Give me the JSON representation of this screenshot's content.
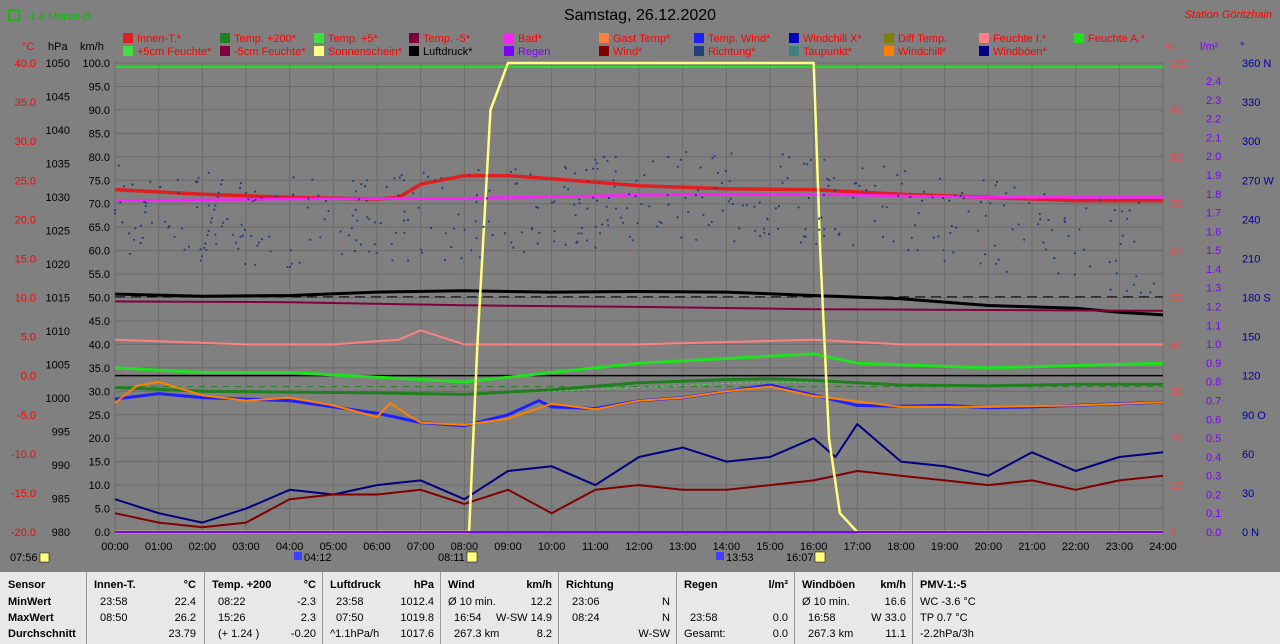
{
  "header": {
    "title": "Samstag, 26.12.2020",
    "station": "Station Göritzhain",
    "trend_label": "-1.4 Monat-Ø"
  },
  "legend_row1": [
    {
      "label": "Innen-T.*",
      "color": "#e02020"
    },
    {
      "label": "Temp. +200*",
      "color": "#208020"
    },
    {
      "label": "Temp. +5*",
      "color": "#40e040"
    },
    {
      "label": "Temp. -5*",
      "color": "#800040"
    },
    {
      "label": "Bad*",
      "color": "#ff20ff"
    },
    {
      "label": "Gast Temp*",
      "color": "#ff8040"
    },
    {
      "label": "Temp. Wind*",
      "color": "#2020ff"
    },
    {
      "label": "Windchill X*",
      "color": "#0000c0"
    },
    {
      "label": "Diff Temp.",
      "color": "#808000"
    },
    {
      "label": "Feuchte I.*",
      "color": "#ff8080"
    },
    {
      "label": "Feuchte A.*",
      "color": "#20e020"
    }
  ],
  "legend_row2": [
    {
      "label": "+5cm Feuchte*",
      "color": "#40e040"
    },
    {
      "label": "-5cm Feuchte*",
      "color": "#800040"
    },
    {
      "label": "Sonnenschein*",
      "color": "#ffff80"
    },
    {
      "label": "Luftdruck*",
      "color": "#000000"
    },
    {
      "label": "Regen",
      "color": "#8000ff"
    },
    {
      "label": "Wind*",
      "color": "#800000"
    },
    {
      "label": "Richtung*",
      "color": "#204080"
    },
    {
      "label": "Taupunkt*",
      "color": "#408080"
    },
    {
      "label": "Windchill*",
      "color": "#ff8000"
    },
    {
      "label": "Windböen*",
      "color": "#000080"
    }
  ],
  "axes": {
    "celsius_unit": "°C",
    "hpa_unit": "hPa",
    "kmh_unit": "km/h",
    "pct_unit": "%",
    "lm2_unit": "l/m²",
    "deg_unit": "°",
    "celsius": [
      "40.0",
      "35.0",
      "30.0",
      "25.0",
      "20.0",
      "15.0",
      "10.0",
      "5.0",
      "0.0",
      "-5.0",
      "-10.0",
      "-15.0",
      "-20.0"
    ],
    "hpa": [
      "1050",
      "1045",
      "1040",
      "1035",
      "1030",
      "1025",
      "1020",
      "1015",
      "1010",
      "1005",
      "1000",
      "995",
      "990",
      "985",
      "980"
    ],
    "kmh": [
      "100.0",
      "95.0",
      "90.0",
      "85.0",
      "80.0",
      "75.0",
      "70.0",
      "65.0",
      "60.0",
      "55.0",
      "50.0",
      "45.0",
      "40.0",
      "35.0",
      "30.0",
      "25.0",
      "20.0",
      "15.0",
      "10.0",
      "5.0",
      "0.0"
    ],
    "pct": [
      "100",
      "90",
      "80",
      "70",
      "60",
      "50",
      "40",
      "30",
      "20",
      "10",
      "0"
    ],
    "lm2": [
      "2.4",
      "2.3",
      "2.2",
      "2.1",
      "2.0",
      "1.9",
      "1.8",
      "1.7",
      "1.6",
      "1.5",
      "1.4",
      "1.3",
      "1.2",
      "1.1",
      "1.0",
      "0.9",
      "0.8",
      "0.7",
      "0.6",
      "0.5",
      "0.4",
      "0.3",
      "0.2",
      "0.1",
      "0.0"
    ],
    "dir": [
      "360 N",
      "330",
      "300",
      "270 W",
      "240",
      "210",
      "180 S",
      "150",
      "120",
      "90 O",
      "60",
      "30",
      "0 N"
    ],
    "hours": [
      "00:00",
      "01:00",
      "02:00",
      "03:00",
      "04:00",
      "05:00",
      "06:00",
      "07:00",
      "08:00",
      "09:00",
      "10:00",
      "11:00",
      "12:00",
      "13:00",
      "14:00",
      "15:00",
      "16:00",
      "17:00",
      "18:00",
      "19:00",
      "20:00",
      "21:00",
      "22:00",
      "23:00",
      "24:00"
    ]
  },
  "sun_marks": {
    "moonset": "07:56",
    "moonrise": "04:12",
    "sunrise": "08:11",
    "noon": "13:53",
    "sunset": "16:07"
  },
  "chart_data": {
    "type": "line",
    "title": "Samstag, 26.12.2020",
    "x_unit": "hour",
    "x_range": [
      0,
      24
    ],
    "grid": true,
    "series": [
      {
        "name": "Innen-T.*",
        "axis": "celsius",
        "color": "#e02020",
        "x": [
          0,
          2,
          4,
          6,
          6.5,
          7,
          8,
          9,
          10,
          12,
          14,
          16,
          18,
          20,
          22,
          24
        ],
        "y": [
          23.8,
          23.2,
          22.8,
          22.6,
          22.8,
          24.5,
          25.6,
          25.6,
          25.2,
          24.3,
          23.9,
          23.8,
          23.2,
          22.8,
          22.4,
          22.4
        ]
      },
      {
        "name": "Feuchte I.*",
        "axis": "pct",
        "color": "#ff8080",
        "x": [
          0,
          3,
          5,
          6.5,
          7,
          8,
          9,
          12,
          16,
          18,
          20,
          24
        ],
        "y": [
          41,
          40,
          40,
          41,
          43,
          40,
          40,
          40,
          41,
          40,
          40,
          40
        ]
      },
      {
        "name": "Luftdruck*",
        "axis": "hpa",
        "color": "#000000",
        "x": [
          0,
          2,
          4,
          6,
          8,
          10,
          12,
          14,
          16,
          18,
          20,
          22,
          23,
          24
        ],
        "y": [
          1015.5,
          1015.2,
          1015.3,
          1015.8,
          1016.0,
          1015.8,
          1015.9,
          1015.8,
          1015.3,
          1014.8,
          1013.8,
          1013.4,
          1012.8,
          1012.4
        ]
      },
      {
        "name": "Bad*",
        "axis": "celsius",
        "color": "#ff20ff",
        "x": [
          0,
          4,
          8,
          10,
          12,
          14,
          16,
          18,
          20,
          24
        ],
        "y": [
          22.4,
          22.6,
          22.7,
          22.9,
          23.1,
          23.2,
          23.2,
          23.0,
          22.8,
          22.8
        ]
      },
      {
        "name": "Temp. -5*",
        "axis": "celsius",
        "color": "#800040",
        "x": [
          0,
          4,
          8,
          12,
          16,
          20,
          24
        ],
        "y": [
          9.5,
          9.4,
          9.0,
          8.8,
          8.5,
          8.4,
          8.3
        ]
      },
      {
        "name": "Feuchte A.*",
        "axis": "pct",
        "color": "#20e020",
        "x": [
          0,
          2,
          4,
          8,
          10,
          12,
          14,
          16,
          17,
          20,
          24
        ],
        "y": [
          35,
          34,
          34,
          32,
          34,
          36,
          37,
          38,
          36,
          35,
          36
        ]
      },
      {
        "name": "Temp. +5*",
        "axis": "celsius",
        "color": "#40e040",
        "x": [
          0,
          2,
          4,
          6,
          8,
          10,
          12,
          14,
          16,
          18,
          20,
          22,
          24
        ],
        "y": [
          -1.5,
          -2.0,
          -2.2,
          -2.3,
          -2.4,
          -2.0,
          -1.5,
          -1.0,
          -0.8,
          -1.2,
          -1.4,
          -1.2,
          -1.1
        ]
      },
      {
        "name": "Temp. +200*",
        "axis": "celsius",
        "color": "#208020",
        "x": [
          0,
          2,
          4,
          6,
          8,
          10,
          12,
          14,
          15,
          16,
          18,
          20,
          22,
          24
        ],
        "y": [
          -1.5,
          -2.0,
          -2.1,
          -2.2,
          -2.4,
          -1.8,
          -0.9,
          -0.5,
          -0.4,
          -0.6,
          -1.2,
          -1.3,
          -1.1,
          -1.1
        ]
      },
      {
        "name": "Temp. Wind*",
        "axis": "celsius",
        "color": "#2020ff",
        "x": [
          0,
          1,
          2,
          3,
          4,
          5,
          6,
          7,
          8,
          9,
          9.7,
          10,
          11,
          12,
          13,
          14,
          15,
          16,
          17,
          18,
          19,
          20,
          21,
          22,
          23,
          24
        ],
        "y": [
          -3.0,
          -2.3,
          -2.8,
          -3.0,
          -3.2,
          -4.0,
          -4.8,
          -6.0,
          -6.4,
          -5.0,
          -3.2,
          -4.0,
          -4.2,
          -3.2,
          -2.8,
          -2.0,
          -1.2,
          -2.5,
          -3.8,
          -3.9,
          -3.8,
          -4.1,
          -4.0,
          -3.8,
          -3.6,
          -3.4
        ]
      },
      {
        "name": "Windchill*",
        "axis": "celsius",
        "color": "#ff8000",
        "x": [
          0,
          0.5,
          1,
          2,
          3,
          4,
          5,
          6,
          6.3,
          6.7,
          7,
          8,
          9,
          10,
          11,
          12,
          13,
          14,
          15,
          16,
          18,
          20,
          22,
          24
        ],
        "y": [
          -3.5,
          -1.3,
          -0.8,
          -2.5,
          -3.2,
          -2.8,
          -3.8,
          -5.3,
          -3.5,
          -5.0,
          -6.0,
          -6.3,
          -5.5,
          -3.6,
          -4.3,
          -3.2,
          -2.8,
          -2.0,
          -1.4,
          -2.6,
          -4.0,
          -4.0,
          -3.8,
          -3.4
        ]
      },
      {
        "name": "Windböen*",
        "axis": "kmh",
        "color": "#000080",
        "x": [
          0,
          1,
          2,
          3,
          4,
          5,
          6,
          7,
          8,
          9,
          10,
          11,
          12,
          13,
          14,
          15,
          16,
          16.5,
          17,
          18,
          19,
          20,
          21,
          22,
          23,
          24
        ],
        "y": [
          7,
          4,
          2,
          5,
          9,
          8,
          10,
          11,
          7,
          13,
          14,
          10,
          16,
          18,
          15,
          16,
          20,
          16,
          23,
          15,
          14,
          12,
          17,
          13,
          16,
          17
        ]
      },
      {
        "name": "Wind*",
        "axis": "kmh",
        "color": "#800000",
        "x": [
          0,
          1,
          2,
          3,
          4,
          5,
          6,
          7,
          8,
          9,
          10,
          11,
          12,
          13,
          14,
          15,
          16,
          17,
          18,
          19,
          20,
          21,
          22,
          23,
          24
        ],
        "y": [
          4,
          2,
          1,
          2,
          7,
          8,
          8,
          9,
          6,
          9,
          4,
          9,
          10,
          9,
          9,
          10,
          11,
          13,
          12,
          11,
          10,
          11,
          9,
          11,
          12
        ]
      },
      {
        "name": "Sonnenschein*",
        "axis": "pct",
        "color": "#ffff80",
        "x": [
          0,
          8.11,
          8.3,
          8.6,
          9,
          9.5,
          16,
          16.15,
          16.35,
          16.6,
          17,
          24
        ],
        "y": [
          0,
          0,
          40,
          90,
          100,
          100,
          100,
          60,
          20,
          4,
          0,
          0
        ]
      },
      {
        "name": "Regen",
        "axis": "lm2",
        "color": "#8000ff",
        "x": [
          0,
          24
        ],
        "y": [
          0,
          0
        ]
      }
    ]
  },
  "stats": {
    "sensor": {
      "title": "Sensor",
      "rows": [
        "MinWert",
        "MaxWert",
        "Durchschnitt"
      ]
    },
    "innen": {
      "title": "Innen-T.",
      "unit": "°C",
      "rows": [
        [
          "23:58",
          "22.4"
        ],
        [
          "08:50",
          "26.2"
        ],
        [
          "",
          "23.79"
        ]
      ]
    },
    "temp200": {
      "title": "Temp. +200",
      "unit": "°C",
      "rows": [
        [
          "08:22",
          "-2.3"
        ],
        [
          "15:26",
          "2.3"
        ],
        [
          "(+ 1.24 )",
          "-0.20"
        ]
      ]
    },
    "druck": {
      "title": "Luftdruck",
      "unit": "hPa",
      "rows": [
        [
          "23:58",
          "1012.4"
        ],
        [
          "07:50",
          "1019.8"
        ],
        [
          "^1.1hPa/h",
          "1017.6"
        ]
      ]
    },
    "wind": {
      "title": "Wind",
      "unit": "km/h",
      "rows": [
        [
          "Ø 10 min.",
          "",
          "12.2"
        ],
        [
          "16:54",
          "W-SW 14.9",
          ""
        ],
        [
          "267.3 km",
          "",
          "8.2"
        ]
      ]
    },
    "richtung": {
      "title": "Richtung",
      "unit": "",
      "rows": [
        [
          "23:06",
          "N"
        ],
        [
          "08:24",
          "N"
        ],
        [
          "",
          "W-SW"
        ]
      ]
    },
    "regen": {
      "title": "Regen",
      "unit": "l/m²",
      "rows": [
        [
          "",
          ""
        ],
        [
          "23:58",
          "0.0"
        ],
        [
          "Gesamt:",
          "0.0"
        ]
      ]
    },
    "boeen": {
      "title": "Windböen",
      "unit": "km/h",
      "rows": [
        [
          "Ø 10 min.",
          "16.6"
        ],
        [
          "16:58",
          "W 33.0"
        ],
        [
          "267.3 km",
          "11.1"
        ]
      ]
    },
    "pmv": {
      "title": "PMV-1:-5",
      "rows": [
        "WC -3.6 °C",
        "TP 0.7 °C",
        "-2.2hPa/3h"
      ]
    }
  }
}
